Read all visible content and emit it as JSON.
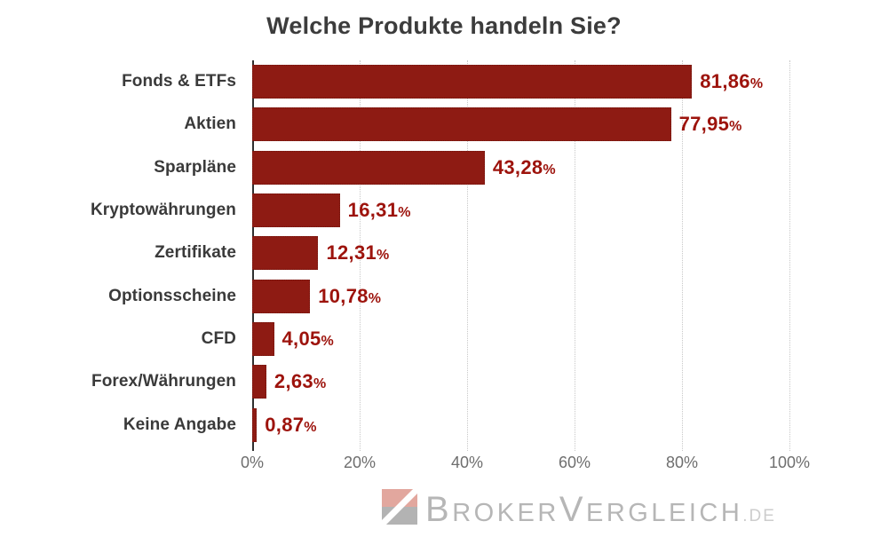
{
  "title": "Welche Produkte handeln Sie?",
  "chart_data": {
    "type": "bar",
    "orientation": "horizontal",
    "title": "Welche Produkte handeln Sie?",
    "categories": [
      "Fonds & ETFs",
      "Aktien",
      "Sparpläne",
      "Kryptowährungen",
      "Zertifikate",
      "Optionsscheine",
      "CFD",
      "Forex/Währungen",
      "Keine Angabe"
    ],
    "values": [
      81.86,
      77.95,
      43.28,
      16.31,
      12.31,
      10.78,
      4.05,
      2.63,
      0.87
    ],
    "value_labels": [
      "81,86",
      "77,95",
      "43,28",
      "16,31",
      "12,31",
      "10,78",
      "4,05",
      "2,63",
      "0,87"
    ],
    "value_suffix": "%",
    "x_tick_labels": [
      "0%",
      "20%",
      "40%",
      "60%",
      "80%",
      "100%"
    ],
    "x_tick_values": [
      0,
      20,
      40,
      60,
      80,
      100
    ],
    "xlim": [
      0,
      100
    ],
    "grid": "vertical dotted gridlines, solid axis line at 0%",
    "legend": "none",
    "colors": {
      "bar": "#8E1B13",
      "value_label": "#9D130C",
      "category_label": "#3A3A3A",
      "axis_label": "#6E6E6E",
      "gridline": "#C8C8C8",
      "axis_line": "#2F2F2F",
      "title": "#3C3C3C",
      "background": "#FFFFFF"
    }
  },
  "branding": {
    "logo_icon": "diagonal-split-square",
    "brand_lead_1": "B",
    "brand_rest_1": "ROKER",
    "brand_lead_2": "V",
    "brand_rest_2": "ERGLEICH",
    "brand_suffix": ".DE",
    "colors": {
      "icon_top": "#E2A79E",
      "icon_bottom": "#B3B3B3",
      "text": "#B6B6B6",
      "suffix": "#CDCDCD"
    }
  }
}
